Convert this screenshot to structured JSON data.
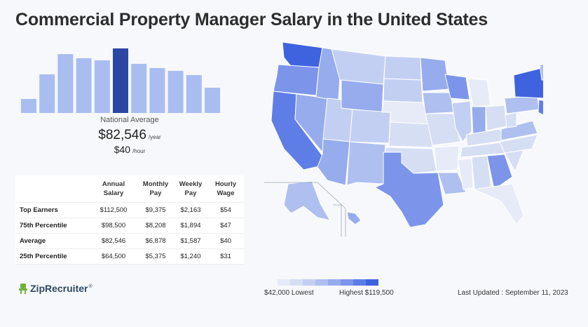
{
  "title": "Commercial Property Manager Salary in the United States",
  "chart_data": [
    {
      "type": "bar",
      "categories": [
        "1",
        "2",
        "3",
        "4",
        "5",
        "6",
        "7",
        "8",
        "9",
        "10",
        "11"
      ],
      "values": [
        20,
        55,
        84,
        78,
        75,
        92,
        70,
        64,
        60,
        54,
        36
      ],
      "highlight_index": 5,
      "colors": {
        "bar": "#a9bdf1",
        "highlight": "#2a48a3"
      }
    },
    {
      "type": "heatmap",
      "title": "",
      "min_label": "$42,000 Lowest",
      "max_label": "Highest $119,500",
      "scale_colors": [
        "#e6ebf7",
        "#d6def4",
        "#c3cff2",
        "#aebff0",
        "#97aced",
        "#7c95ea",
        "#5f7de6",
        "#3f63df"
      ]
    }
  ],
  "national": {
    "label": "National Average",
    "yearly": "$82,546",
    "yearly_unit": "/year",
    "hourly": "$40",
    "hourly_unit": "/hour"
  },
  "table": {
    "headers": [
      "",
      "Annual Salary",
      "Monthly Pay",
      "Weekly Pay",
      "Hourly Wage"
    ],
    "rows": [
      [
        "Top Earners",
        "$112,500",
        "$9,375",
        "$2,163",
        "$54"
      ],
      [
        "75th Percentile",
        "$98,500",
        "$8,208",
        "$1,894",
        "$47"
      ],
      [
        "Average",
        "$82,546",
        "$6,878",
        "$1,587",
        "$40"
      ],
      [
        "25th Percentile",
        "$64,500",
        "$5,375",
        "$1,240",
        "$31"
      ]
    ]
  },
  "legend": {
    "low": "$42,000 Lowest",
    "high": "Highest $119,500"
  },
  "updated": "Last Updated : September 11, 2023",
  "logo": {
    "text": "ZipRecruiter",
    "mark": "®"
  }
}
